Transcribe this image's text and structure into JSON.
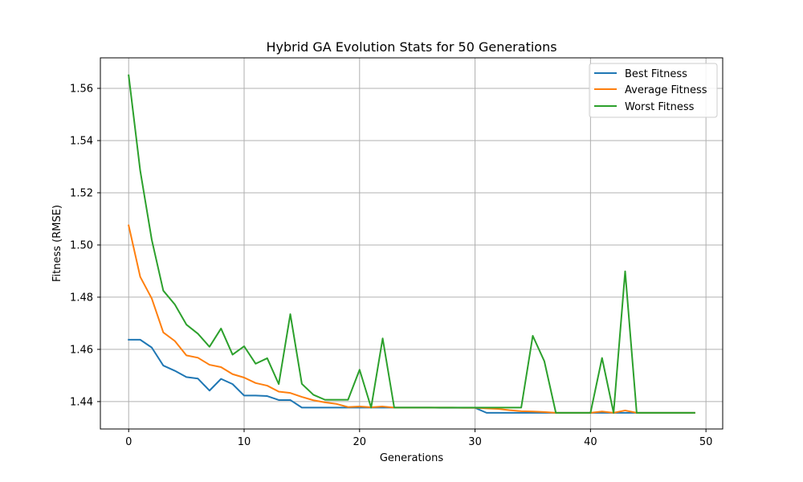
{
  "chart_data": {
    "type": "line",
    "title": "Hybrid GA Evolution Stats for 50 Generations",
    "xlabel": "Generations",
    "ylabel": "Fitness (RMSE)",
    "xlim": [
      -2.45,
      51.45
    ],
    "ylim": [
      1.4295,
      1.5717
    ],
    "xticks": [
      0,
      10,
      20,
      30,
      40,
      50
    ],
    "yticks": [
      1.44,
      1.46,
      1.48,
      1.5,
      1.52,
      1.54,
      1.56
    ],
    "ytick_labels": [
      "1.44",
      "1.46",
      "1.48",
      "1.50",
      "1.52",
      "1.54",
      "1.56"
    ],
    "grid": true,
    "legend_position": "top-right",
    "x": [
      0,
      1,
      2,
      3,
      4,
      5,
      6,
      7,
      8,
      9,
      10,
      11,
      12,
      13,
      14,
      15,
      16,
      17,
      18,
      19,
      20,
      21,
      22,
      23,
      24,
      25,
      26,
      27,
      28,
      29,
      30,
      31,
      32,
      33,
      34,
      35,
      36,
      37,
      38,
      39,
      40,
      41,
      42,
      43,
      44,
      45,
      46,
      47,
      48,
      49
    ],
    "series": [
      {
        "name": "Best Fitness",
        "color": "#1f77b4",
        "values": [
          1.4637,
          1.4637,
          1.4607,
          1.4538,
          1.4518,
          1.4494,
          1.4488,
          1.4442,
          1.4487,
          1.4467,
          1.4423,
          1.4423,
          1.4421,
          1.4406,
          1.4406,
          1.4377,
          1.4377,
          1.4377,
          1.4377,
          1.4377,
          1.4377,
          1.4377,
          1.4377,
          1.4377,
          1.4377,
          1.4377,
          1.4377,
          1.4376,
          1.4376,
          1.4376,
          1.4376,
          1.4357,
          1.4357,
          1.4357,
          1.4357,
          1.4357,
          1.4357,
          1.4357,
          1.4357,
          1.4357,
          1.4357,
          1.4357,
          1.4357,
          1.4357,
          1.4357,
          1.4357,
          1.4357,
          1.4357,
          1.4357,
          1.4357
        ]
      },
      {
        "name": "Average Fitness",
        "color": "#ff7f0e",
        "values": [
          1.5075,
          1.4878,
          1.4795,
          1.4665,
          1.4632,
          1.4577,
          1.4568,
          1.4541,
          1.4532,
          1.4505,
          1.4492,
          1.4471,
          1.4461,
          1.4438,
          1.4433,
          1.4418,
          1.4405,
          1.4397,
          1.4391,
          1.4379,
          1.4381,
          1.4378,
          1.4381,
          1.4377,
          1.4377,
          1.4377,
          1.4377,
          1.4377,
          1.4377,
          1.4376,
          1.4376,
          1.4374,
          1.4372,
          1.4367,
          1.4363,
          1.4362,
          1.436,
          1.4357,
          1.4357,
          1.4357,
          1.4357,
          1.4362,
          1.4357,
          1.4366,
          1.4357,
          1.4357,
          1.4357,
          1.4357,
          1.4357,
          1.4357
        ]
      },
      {
        "name": "Worst Fitness",
        "color": "#2ca02c",
        "values": [
          1.565,
          1.5285,
          1.502,
          1.4825,
          1.4772,
          1.4695,
          1.466,
          1.461,
          1.468,
          1.458,
          1.4612,
          1.4545,
          1.4566,
          1.4467,
          1.4735,
          1.4468,
          1.4426,
          1.4407,
          1.4407,
          1.4407,
          1.4522,
          1.4377,
          1.4642,
          1.4377,
          1.4377,
          1.4377,
          1.4377,
          1.4377,
          1.4377,
          1.4377,
          1.4377,
          1.4377,
          1.4377,
          1.4377,
          1.4377,
          1.4652,
          1.4555,
          1.4357,
          1.4357,
          1.4357,
          1.4357,
          1.4567,
          1.4357,
          1.4899,
          1.4357,
          1.4357,
          1.4357,
          1.4357,
          1.4357,
          1.4357
        ]
      }
    ]
  }
}
